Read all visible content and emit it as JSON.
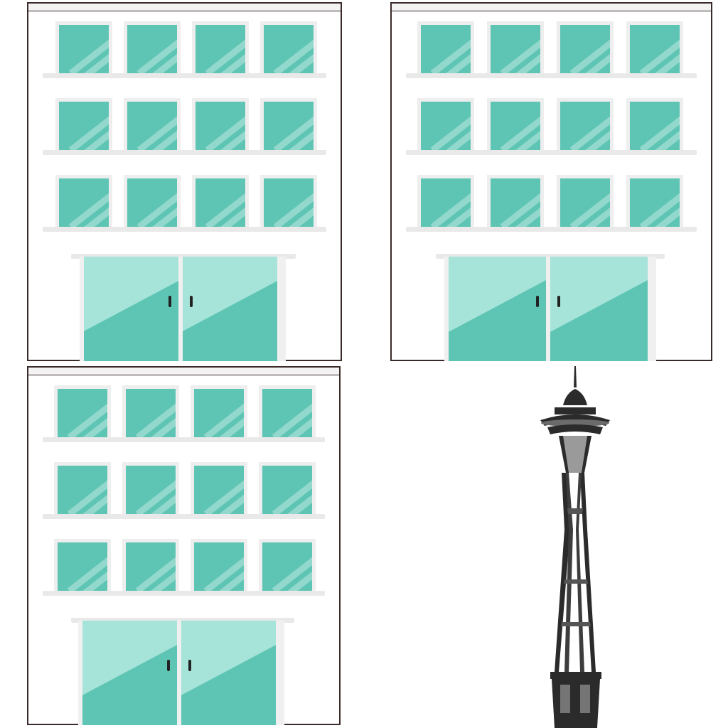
{
  "scene": {
    "buildings": [
      {
        "name": "building-top-left",
        "window_rows": 3,
        "windows_per_row": 4,
        "doors": 2
      },
      {
        "name": "building-top-right",
        "window_rows": 3,
        "windows_per_row": 4,
        "doors": 2
      },
      {
        "name": "building-bottom-left",
        "window_rows": 3,
        "windows_per_row": 4,
        "doors": 2
      }
    ],
    "tower": {
      "name": "space-needle-silhouette"
    }
  },
  "colors": {
    "glass": "#5ec5b4",
    "glass_highlight": "#a6e3d9",
    "frame": "#eeeeee",
    "outline": "#3a2a2a",
    "tower": "#2b2b2b"
  }
}
